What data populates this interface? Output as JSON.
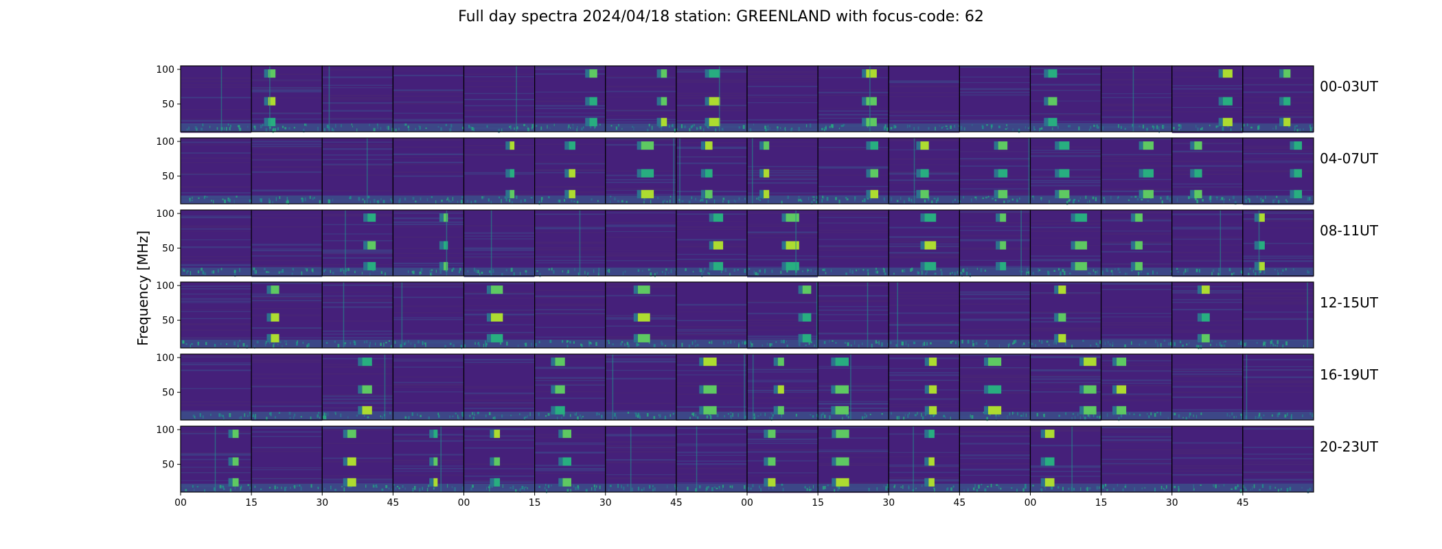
{
  "title": "Full day spectra 2024/04/18 station: GREENLAND with focus-code: 62",
  "chart_data": {
    "type": "heatmap",
    "title": "Full day spectra 2024/04/18 station: GREENLAND with focus-code: 62",
    "ylabel": "Frequency [MHz]",
    "colormap": "viridis",
    "colors": {
      "low": "#440154",
      "mid": "#31688e",
      "high": "#fde725"
    },
    "rows": [
      "00-03UT",
      "04-07UT",
      "08-11UT",
      "12-15UT",
      "16-19UT",
      "20-23UT"
    ],
    "panels_per_row": 16,
    "panel_minutes": 15,
    "ylim": [
      10,
      105
    ],
    "yticks": [
      50,
      100
    ],
    "ytick_labels": [
      "50",
      "100"
    ],
    "xtick_labels": [
      "00",
      "15",
      "30",
      "45",
      "00",
      "15",
      "30",
      "45",
      "00",
      "15",
      "30",
      "45",
      "00",
      "15",
      "30",
      "45"
    ]
  }
}
